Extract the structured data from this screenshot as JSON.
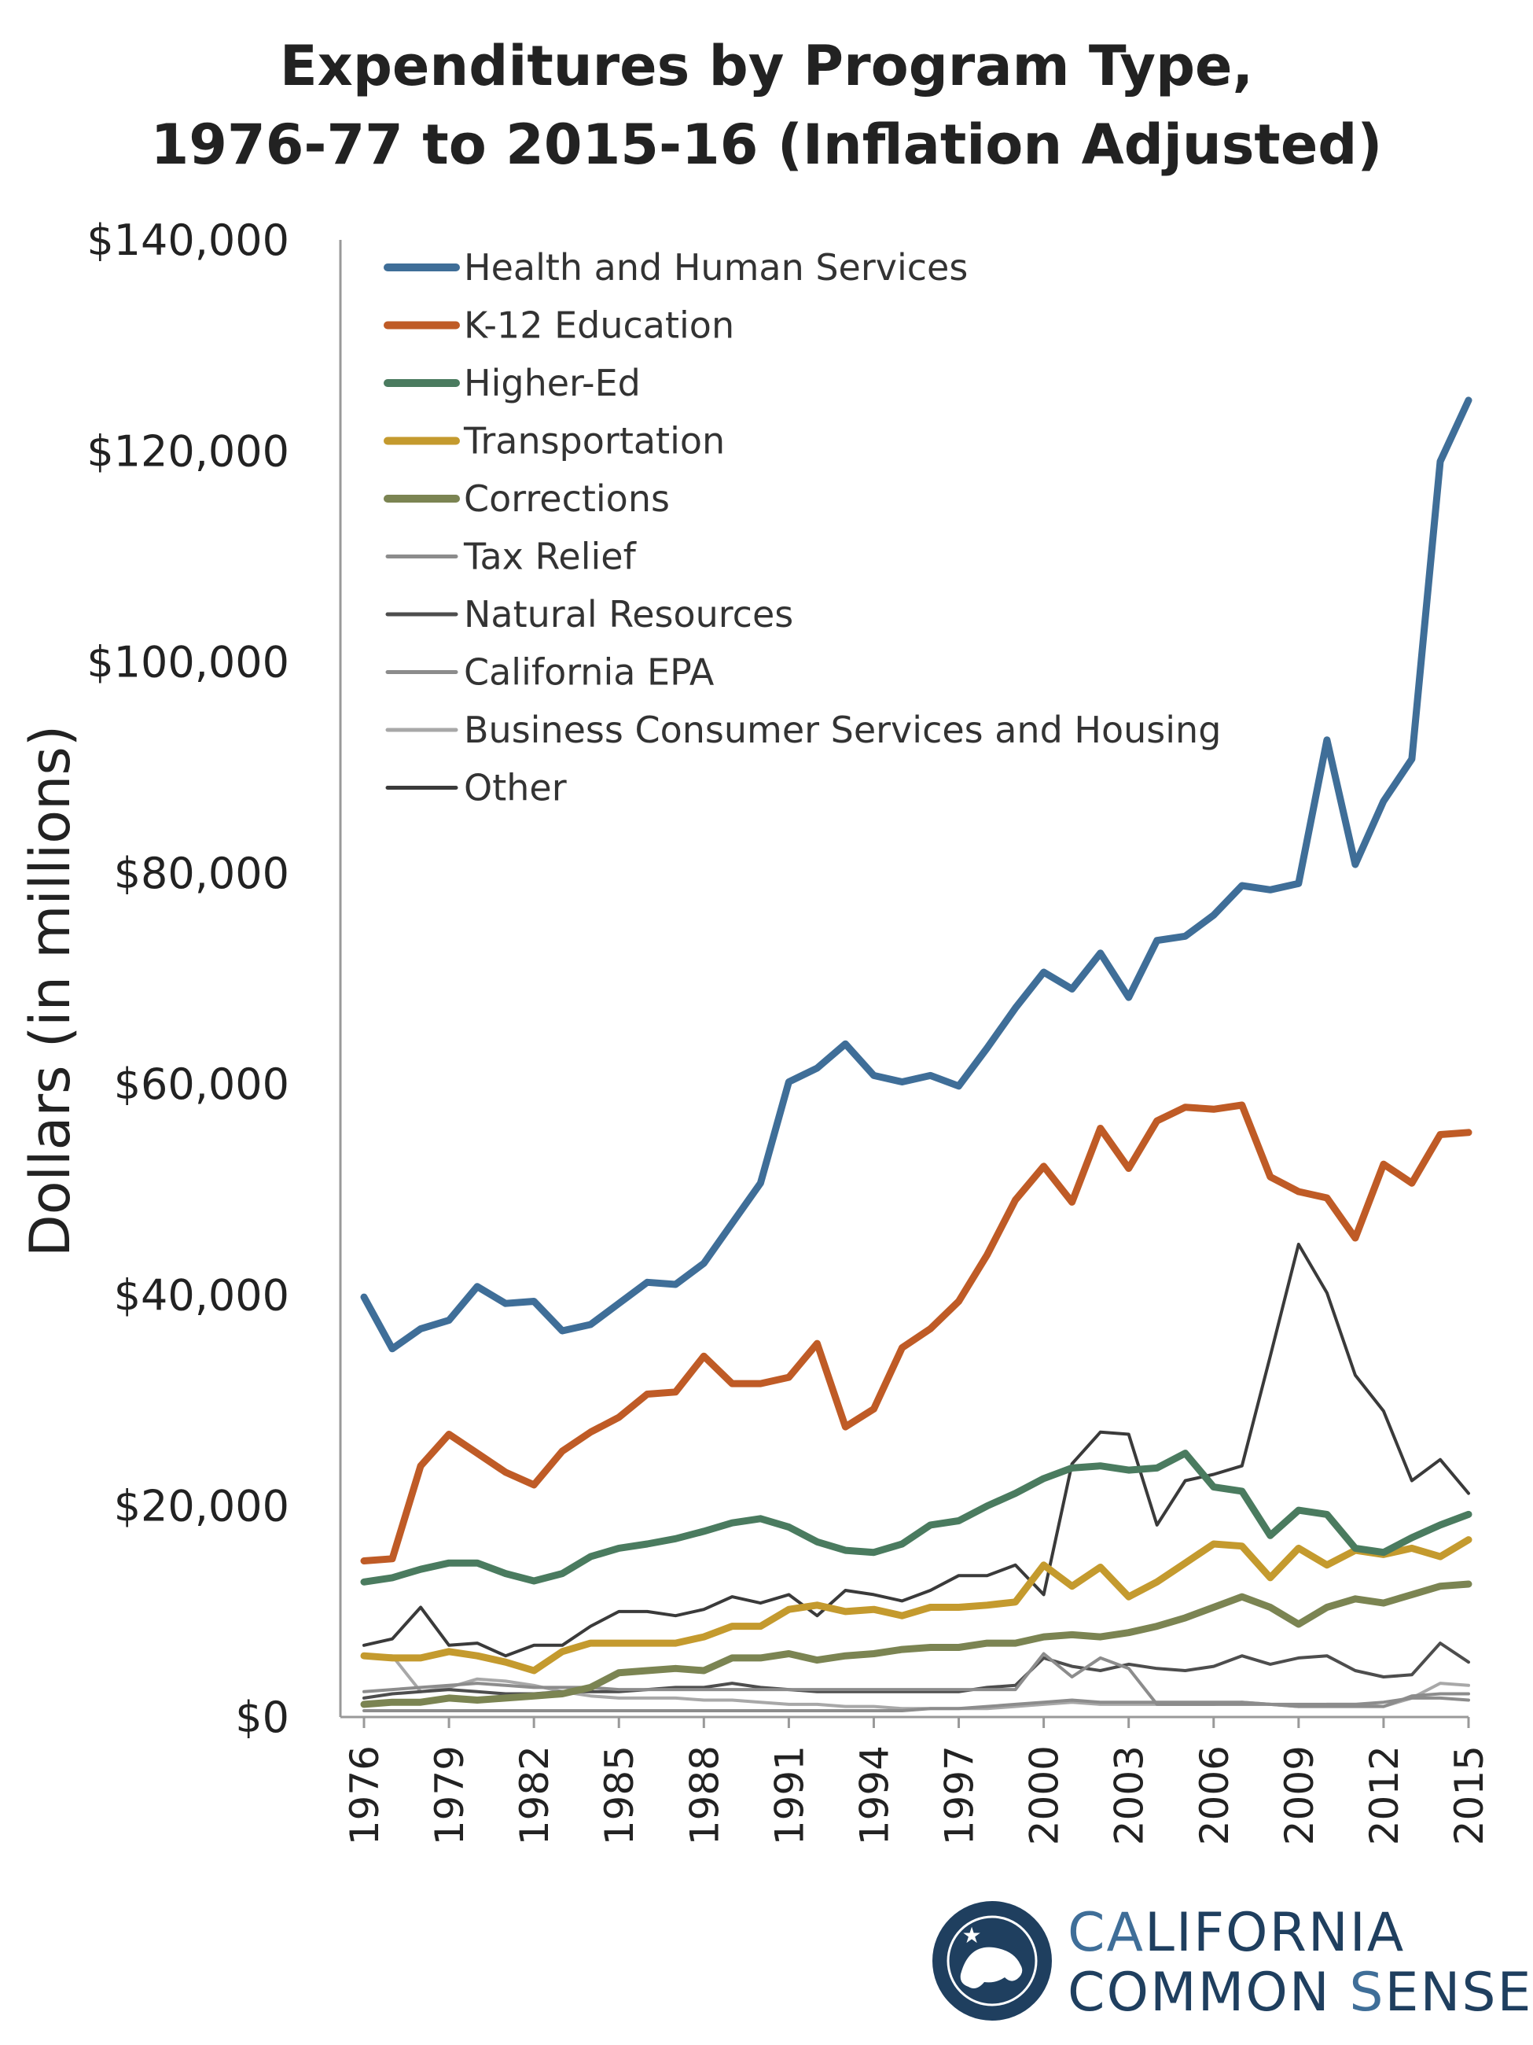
{
  "chart_data": {
    "type": "line",
    "title_lines": [
      "Expenditures by Program Type,",
      "1976-77 to 2015-16 (Inflation Adjusted)"
    ],
    "ylabel": "Dollars (in millions)",
    "xlabel": "",
    "ylim": [
      0,
      140000
    ],
    "yticks": [
      0,
      20000,
      40000,
      60000,
      80000,
      100000,
      120000,
      140000
    ],
    "ytick_labels": [
      "$0",
      "$20,000",
      "$40,000",
      "$60,000",
      "$80,000",
      "$100,000",
      "$120,000",
      "$140,000"
    ],
    "xlim": [
      1976,
      2015
    ],
    "xtick_labels": [
      "1976",
      "1979",
      "1982",
      "1985",
      "1988",
      "1991",
      "1994",
      "1997",
      "2000",
      "2003",
      "2006",
      "2009",
      "2012",
      "2015"
    ],
    "x": [
      1976,
      1977,
      1978,
      1979,
      1980,
      1981,
      1982,
      1983,
      1984,
      1985,
      1986,
      1987,
      1988,
      1989,
      1990,
      1991,
      1992,
      1993,
      1994,
      1995,
      1996,
      1997,
      1998,
      1999,
      2000,
      2001,
      2002,
      2003,
      2004,
      2005,
      2006,
      2007,
      2008,
      2009,
      2010,
      2011,
      2012,
      2013,
      2014,
      2015
    ],
    "legend_position": "top-left",
    "grid": false,
    "series": [
      {
        "name": "Health and Human Services",
        "color": "#3f6e98",
        "width": 9,
        "values": [
          39800,
          34900,
          36800,
          37600,
          40800,
          39200,
          39400,
          36600,
          37200,
          39200,
          41200,
          41000,
          43000,
          46800,
          50600,
          60200,
          61500,
          63800,
          60800,
          60200,
          60800,
          59800,
          63400,
          67200,
          70600,
          69000,
          72400,
          68200,
          73600,
          74000,
          76000,
          78800,
          78400,
          79000,
          92600,
          80800,
          86800,
          90800,
          119000,
          124800
        ]
      },
      {
        "name": "K-12 Education",
        "color": "#bf5b26",
        "width": 9,
        "values": [
          14800,
          15000,
          23800,
          26800,
          25000,
          23200,
          22000,
          25200,
          27000,
          28400,
          30600,
          30800,
          34200,
          31600,
          31600,
          32200,
          35400,
          27500,
          29200,
          35000,
          36800,
          39400,
          43800,
          49000,
          52200,
          48800,
          55800,
          52000,
          56500,
          57800,
          57600,
          58000,
          51200,
          49800,
          49200,
          45400,
          52400,
          50600,
          55200,
          55400
        ]
      },
      {
        "name": "Higher-Ed",
        "color": "#4a7b5f",
        "width": 9,
        "values": [
          12800,
          13200,
          14000,
          14600,
          14600,
          13600,
          12900,
          13600,
          15200,
          16000,
          16400,
          16900,
          17600,
          18400,
          18800,
          18000,
          16600,
          15800,
          15600,
          16400,
          18200,
          18600,
          20000,
          21200,
          22600,
          23600,
          23800,
          23400,
          23600,
          25000,
          21800,
          21400,
          17200,
          19600,
          19200,
          16000,
          15600,
          17000,
          18200,
          19200
        ]
      },
      {
        "name": "Transportation",
        "color": "#c49a2e",
        "width": 9,
        "values": [
          5800,
          5600,
          5600,
          6200,
          5800,
          5200,
          4400,
          6200,
          7000,
          7000,
          7000,
          7000,
          7600,
          8600,
          8600,
          10200,
          10600,
          10000,
          10200,
          9600,
          10400,
          10400,
          10600,
          10900,
          14400,
          12400,
          14200,
          11400,
          12800,
          14600,
          16400,
          16200,
          13200,
          16000,
          14400,
          15800,
          15400,
          16000,
          15200,
          16800
        ]
      },
      {
        "name": "Corrections",
        "color": "#7b8452",
        "width": 9,
        "values": [
          1200,
          1400,
          1400,
          1800,
          1600,
          1800,
          2000,
          2200,
          2800,
          4200,
          4400,
          4600,
          4400,
          5600,
          5600,
          6000,
          5400,
          5800,
          6000,
          6400,
          6600,
          6600,
          7000,
          7000,
          7600,
          7800,
          7600,
          8000,
          8600,
          9400,
          10400,
          11400,
          10400,
          8800,
          10400,
          11200,
          10800,
          11600,
          12400,
          12600
        ]
      },
      {
        "name": "Tax Relief",
        "color": "#8c8c8c",
        "width": 4,
        "values": [
          2400,
          2600,
          2800,
          3000,
          3200,
          3000,
          2800,
          2800,
          2800,
          2600,
          2600,
          2600,
          2600,
          2600,
          2600,
          2600,
          2600,
          2600,
          2600,
          2600,
          2600,
          2600,
          2600,
          2600,
          6000,
          3800,
          5600,
          4600,
          1200,
          1200,
          1200,
          1200,
          1200,
          1000,
          1000,
          1000,
          1000,
          2000,
          2200,
          2200
        ]
      },
      {
        "name": "Natural Resources",
        "color": "#4d4d4d",
        "width": 4,
        "values": [
          1800,
          2200,
          2400,
          2600,
          2400,
          2200,
          2200,
          2400,
          2400,
          2400,
          2600,
          2800,
          2800,
          3200,
          2800,
          2600,
          2400,
          2400,
          2400,
          2400,
          2400,
          2400,
          2800,
          3000,
          5600,
          4800,
          4400,
          5000,
          4600,
          4400,
          4800,
          5800,
          5000,
          5600,
          5800,
          4400,
          3800,
          4000,
          7000,
          5200
        ]
      },
      {
        "name": "California EPA",
        "color": "#8c8c8c",
        "width": 4,
        "values": [
          600,
          600,
          600,
          600,
          600,
          600,
          600,
          600,
          600,
          600,
          600,
          600,
          600,
          600,
          600,
          600,
          600,
          600,
          600,
          600,
          800,
          800,
          1000,
          1200,
          1400,
          1600,
          1400,
          1400,
          1400,
          1400,
          1400,
          1400,
          1200,
          1200,
          1200,
          1200,
          1400,
          1800,
          1800,
          1600
        ]
      },
      {
        "name": "Business Consumer Services and Housing",
        "color": "#a8a8a8",
        "width": 4,
        "values": [
          5800,
          5800,
          2400,
          2800,
          3600,
          3400,
          3000,
          2400,
          2000,
          1800,
          1800,
          1800,
          1600,
          1600,
          1400,
          1200,
          1200,
          1000,
          1000,
          800,
          800,
          800,
          800,
          1000,
          1200,
          1400,
          1200,
          1200,
          1200,
          1200,
          1200,
          1400,
          1200,
          1000,
          1200,
          1200,
          1000,
          1800,
          3200,
          3000
        ]
      },
      {
        "name": "Other",
        "color": "#3a3a3a",
        "width": 4,
        "values": [
          6800,
          7400,
          10400,
          6800,
          7000,
          5800,
          6800,
          6800,
          8600,
          10000,
          10000,
          9600,
          10200,
          11400,
          10800,
          11600,
          9600,
          12000,
          11600,
          11000,
          12000,
          13400,
          13400,
          14400,
          11600,
          24000,
          27000,
          26800,
          18200,
          22400,
          23000,
          23800,
          34200,
          44800,
          40200,
          32400,
          29000,
          22400,
          24400,
          21200
        ]
      }
    ]
  },
  "logo": {
    "line1_a": "CA",
    "line1_b": "LIFORNIA",
    "line2_a": "COMMON ",
    "line2_b": "S",
    "line2_c": "ENSE"
  }
}
